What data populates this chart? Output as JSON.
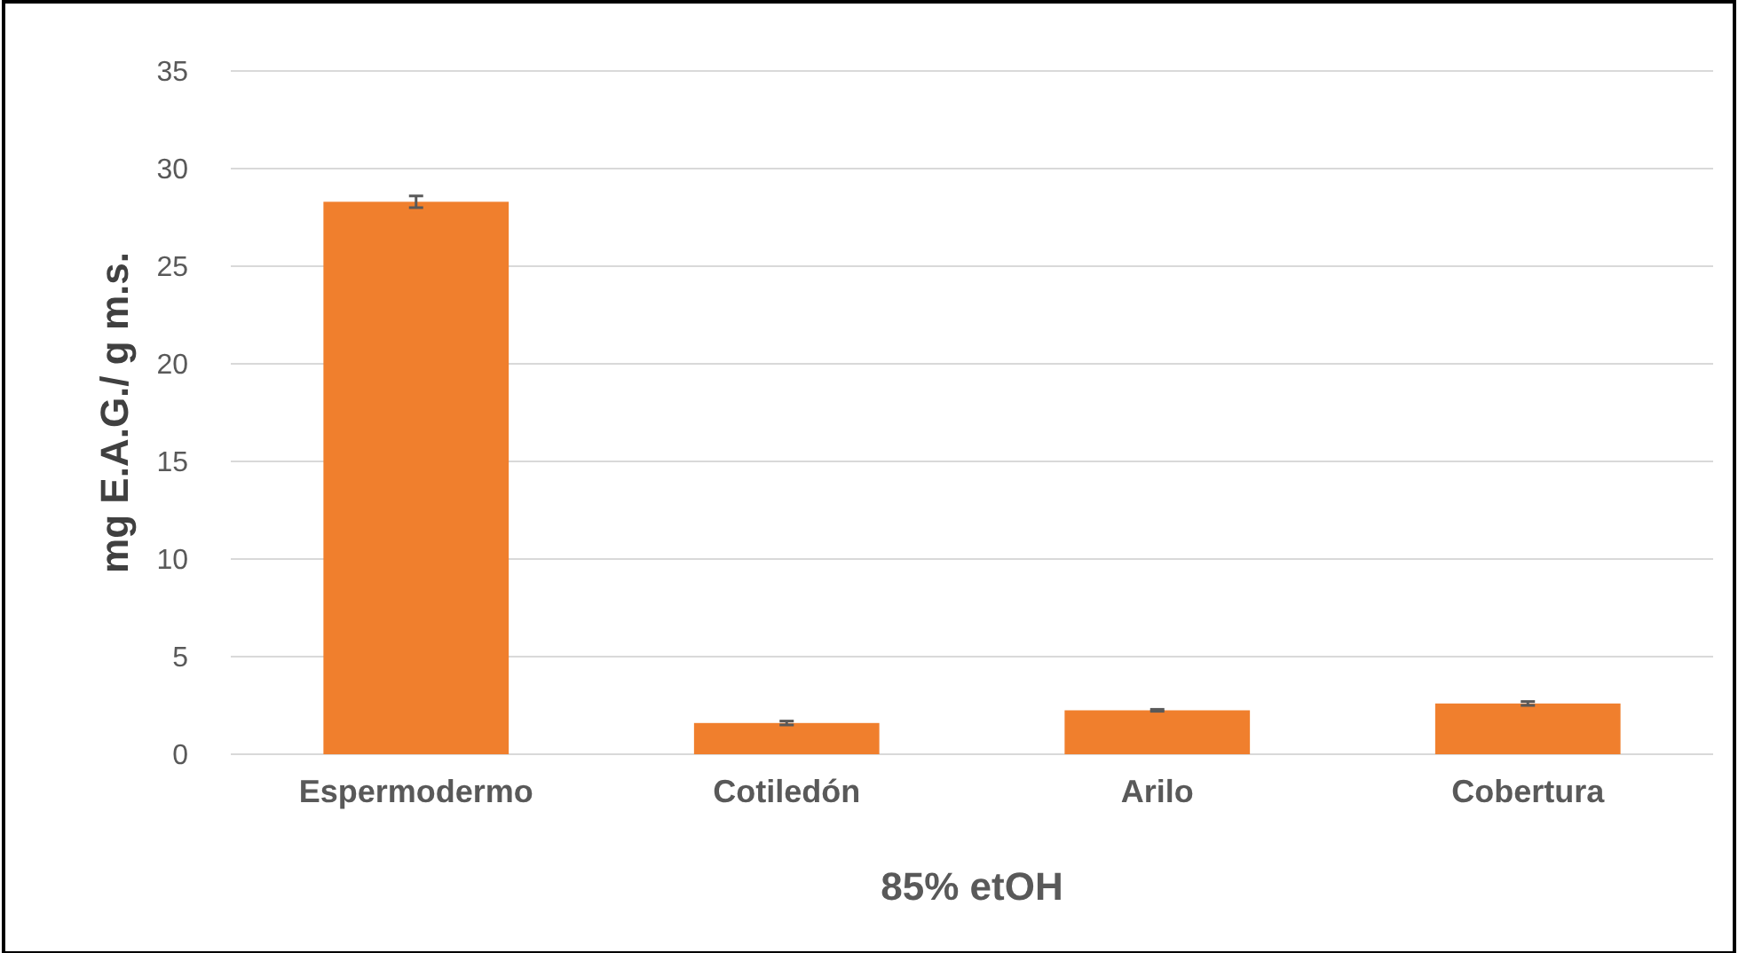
{
  "chart_data": {
    "type": "bar",
    "xlabel": "85% etOH",
    "ylabel": "mg E.A.G./ g m.s.",
    "categories": [
      "Espermodermo",
      "Cotiledón",
      "Arilo",
      "Cobertura"
    ],
    "values": [
      28.3,
      1.6,
      2.25,
      2.6
    ],
    "errors": [
      0.3,
      0.1,
      0.05,
      0.1
    ],
    "color": "#f07f2d",
    "ylim": [
      0,
      35
    ],
    "yticks": [
      0,
      5,
      10,
      15,
      20,
      25,
      30,
      35
    ],
    "grid": "y"
  }
}
